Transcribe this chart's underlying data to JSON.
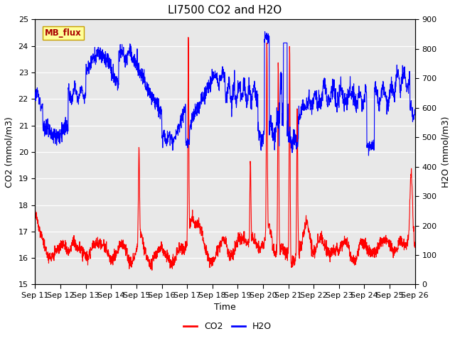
{
  "title": "LI7500 CO2 and H2O",
  "xlabel": "Time",
  "ylabel_left": "CO2 (mmol/m3)",
  "ylabel_right": "H2O (mmol/m3)",
  "co2_color": "#FF0000",
  "h2o_color": "#0000FF",
  "ylim_left": [
    15.0,
    25.0
  ],
  "ylim_right": [
    0,
    900
  ],
  "yticks_left": [
    15.0,
    16.0,
    17.0,
    18.0,
    19.0,
    20.0,
    21.0,
    22.0,
    23.0,
    24.0,
    25.0
  ],
  "yticks_right": [
    0,
    100,
    200,
    300,
    400,
    500,
    600,
    700,
    800,
    900
  ],
  "background_color": "#E8E8E8",
  "annotation_text": "MB_flux",
  "annotation_bg": "#FFFF99",
  "annotation_border": "#C8A000",
  "linewidth": 0.8,
  "title_fontsize": 11,
  "label_fontsize": 9,
  "tick_fontsize": 8
}
